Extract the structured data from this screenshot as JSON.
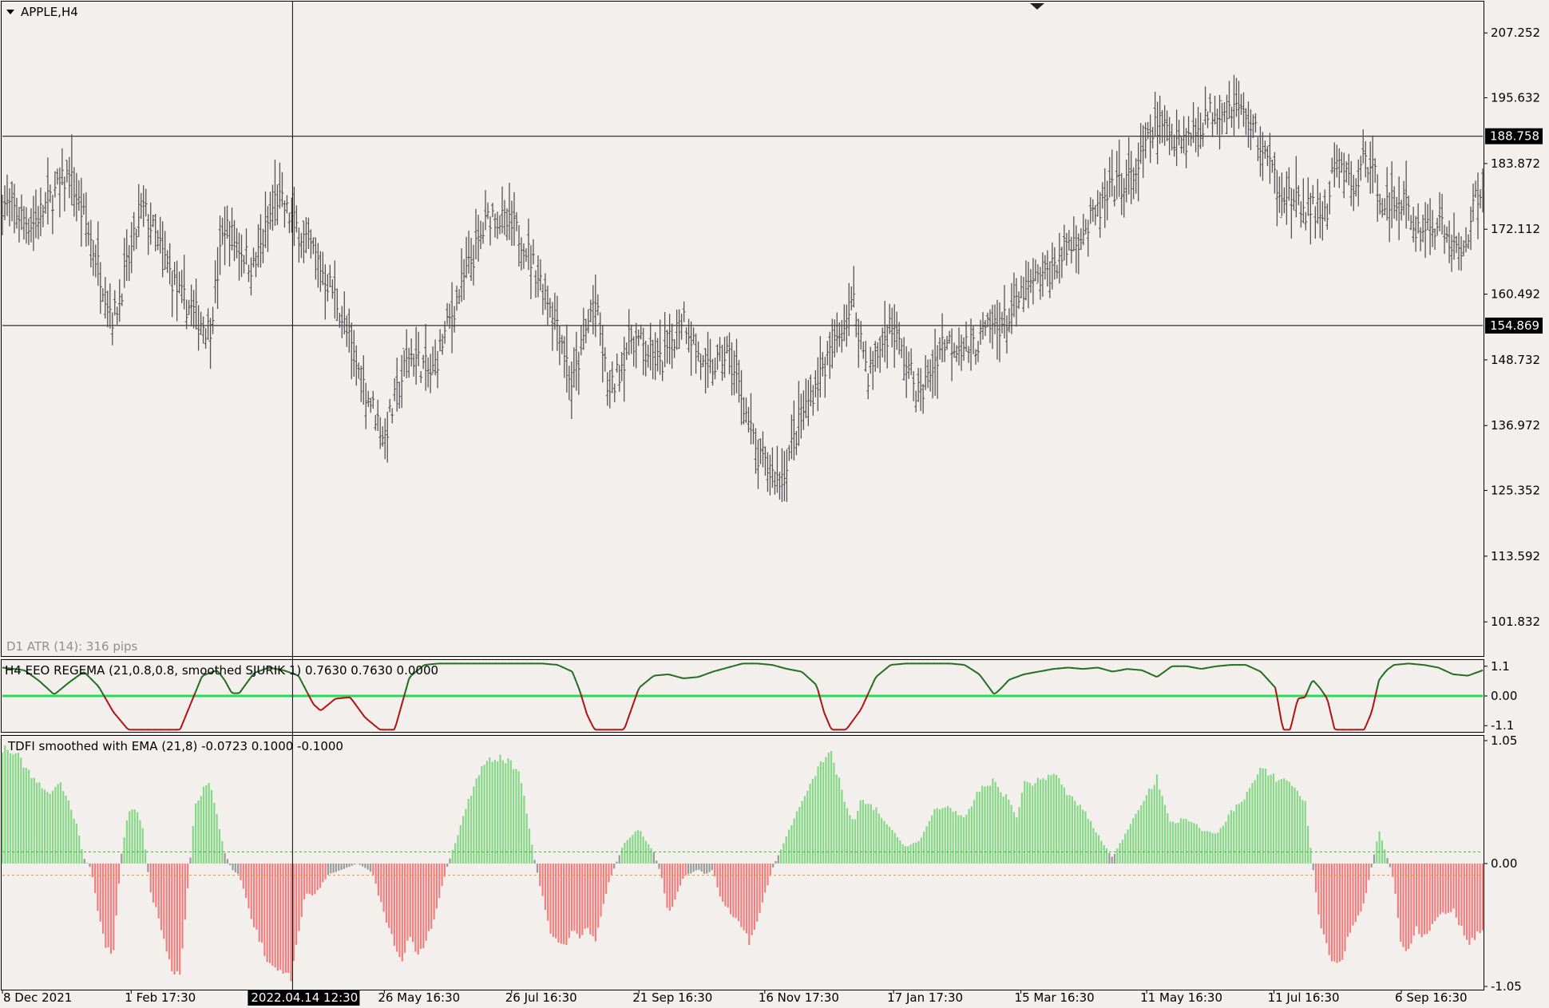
{
  "window": {
    "symbol_title": "APPLE,H4",
    "atr_label": "D1 ATR (14): 316 pips",
    "crosshair_time": "2022.04.14 12:30"
  },
  "colors": {
    "background": "#f2efed",
    "price_bars": "#555555",
    "green_line": "#22dd55",
    "eeo_up": "#1e6b1e",
    "eeo_down": "#b01010",
    "histo_pos": "#86d886",
    "histo_neg": "#f08080",
    "histo_neutral": "#9a9a9a",
    "level_pos": "#33bb33",
    "level_neg": "#ee9933"
  },
  "chart_data": [
    {
      "type": "line",
      "name": "APPLE,H4 price",
      "render": "ohlc-bars",
      "ylim": [
        96,
        212
      ],
      "y_ticks": [
        "207.252",
        "195.632",
        "183.872",
        "172.112",
        "160.492",
        "148.732",
        "136.972",
        "125.352",
        "113.592",
        "101.832"
      ],
      "price_labels": [
        "188.758",
        "154.869"
      ],
      "horizontal_lines": [
        188.758,
        154.869
      ],
      "x_ticks": [
        "8 Dec 2021",
        "1 Feb 17:30",
        "26 May 16:30",
        "26 Jul 16:30",
        "21 Sep 16:30",
        "16 Nov 17:30",
        "17 Jan 17:30",
        "15 Mar 16:30",
        "11 May 16:30",
        "11 Jul 16:30",
        "6 Sep 16:30"
      ],
      "x_tick_positions": [
        0,
        0.087,
        0.258,
        0.344,
        0.43,
        0.515,
        0.602,
        0.688,
        0.773,
        0.859,
        0.945
      ],
      "crosshair_x": 0.196,
      "series": [
        {
          "name": "close",
          "x": [
            0,
            0.02,
            0.045,
            0.06,
            0.075,
            0.095,
            0.12,
            0.14,
            0.15,
            0.17,
            0.185,
            0.21,
            0.225,
            0.24,
            0.258,
            0.275,
            0.29,
            0.31,
            0.33,
            0.35,
            0.375,
            0.385,
            0.4,
            0.41,
            0.425,
            0.445,
            0.46,
            0.475,
            0.49,
            0.5,
            0.51,
            0.525,
            0.545,
            0.56,
            0.575,
            0.585,
            0.6,
            0.62,
            0.635,
            0.655,
            0.67,
            0.68,
            0.69,
            0.705,
            0.72,
            0.735,
            0.75,
            0.765,
            0.78,
            0.8,
            0.82,
            0.835,
            0.845,
            0.86,
            0.875,
            0.895,
            0.9,
            0.915,
            0.92,
            0.935,
            0.945,
            0.955,
            0.97,
            0.985,
            0.998
          ],
          "y": [
            177,
            173,
            182,
            170,
            156,
            176,
            160,
            154,
            173,
            165,
            178,
            168,
            160,
            147,
            135,
            150,
            146,
            162,
            175,
            171,
            156,
            144,
            160,
            142,
            153,
            148,
            157,
            146,
            150,
            142,
            131,
            127,
            142,
            150,
            159,
            146,
            155,
            142,
            152,
            151,
            155,
            156,
            161,
            164,
            169,
            173,
            179,
            182,
            191,
            188,
            194,
            194,
            190,
            181,
            176,
            175,
            184,
            179,
            186,
            176,
            178,
            172,
            173,
            167,
            180
          ]
        }
      ]
    },
    {
      "type": "line",
      "name": "H4 EEO",
      "legend": "H4 EEO  REGEMA (21,0.8,0.8, smoothed  SJURIK 1) 0.7630 0.7630 0.0000",
      "ylim": [
        -1.3,
        1.3
      ],
      "y_ticks": [
        "1.1",
        "0.00",
        "-1.1"
      ],
      "zero_line": 0,
      "series": [
        {
          "name": "EEO",
          "x": [
            0,
            0.015,
            0.025,
            0.035,
            0.045,
            0.055,
            0.065,
            0.075,
            0.085,
            0.095,
            0.11,
            0.12,
            0.135,
            0.145,
            0.15,
            0.155,
            0.16,
            0.17,
            0.18,
            0.185,
            0.19,
            0.2,
            0.21,
            0.215,
            0.225,
            0.235,
            0.245,
            0.255,
            0.265,
            0.275,
            0.285,
            0.295,
            0.305,
            0.315,
            0.325,
            0.335,
            0.345,
            0.355,
            0.365,
            0.375,
            0.385,
            0.39,
            0.395,
            0.4,
            0.41,
            0.42,
            0.43,
            0.44,
            0.45,
            0.46,
            0.47,
            0.48,
            0.49,
            0.5,
            0.51,
            0.52,
            0.53,
            0.54,
            0.55,
            0.555,
            0.56,
            0.57,
            0.58,
            0.59,
            0.6,
            0.61,
            0.62,
            0.63,
            0.64,
            0.65,
            0.66,
            0.67,
            0.675,
            0.68,
            0.69,
            0.7,
            0.71,
            0.72,
            0.73,
            0.74,
            0.75,
            0.76,
            0.77,
            0.78,
            0.79,
            0.8,
            0.81,
            0.82,
            0.83,
            0.84,
            0.85,
            0.86,
            0.865,
            0.87,
            0.875,
            0.88,
            0.885,
            0.89,
            0.895,
            0.9,
            0.91,
            0.92,
            0.925,
            0.93,
            0.935,
            0.94,
            0.95,
            0.96,
            0.97,
            0.98,
            0.99,
            1.0
          ],
          "y": [
            1.05,
            0.95,
            0.55,
            0.05,
            0.5,
            0.9,
            0.35,
            -0.6,
            -1.25,
            -1.25,
            -1.25,
            -1.25,
            0.75,
            0.95,
            0.6,
            0.1,
            0.1,
            0.85,
            1.05,
            1.0,
            0.95,
            0.75,
            -0.3,
            -0.55,
            -0.1,
            -0.05,
            -0.8,
            -1.25,
            -1.25,
            0.7,
            1.15,
            1.2,
            1.2,
            1.2,
            1.2,
            1.2,
            1.2,
            1.2,
            1.2,
            1.15,
            0.9,
            0.2,
            -0.7,
            -1.25,
            -1.25,
            -1.25,
            0.3,
            0.75,
            0.8,
            0.65,
            0.7,
            0.9,
            1.05,
            1.2,
            1.2,
            1.15,
            1.0,
            0.9,
            0.4,
            -0.6,
            -1.25,
            -1.25,
            -0.5,
            0.7,
            1.15,
            1.2,
            1.2,
            1.2,
            1.2,
            1.15,
            0.8,
            0.05,
            0.3,
            0.6,
            0.8,
            0.9,
            1.0,
            1.05,
            1.0,
            1.05,
            0.9,
            1.0,
            0.95,
            0.7,
            1.1,
            1.1,
            1.0,
            1.1,
            1.15,
            1.15,
            0.9,
            0.3,
            -1.25,
            -1.25,
            -0.1,
            -0.05,
            0.6,
            0.3,
            -0.1,
            -1.25,
            -1.25,
            -1.25,
            -0.6,
            0.6,
            0.95,
            1.15,
            1.2,
            1.15,
            1.05,
            0.8,
            0.75,
            0.95
          ]
        }
      ]
    },
    {
      "type": "bar",
      "name": "TDFI",
      "legend": "TDFI smoothed with EMA (21,8) -0.0723 0.1000 -0.1000",
      "ylim": [
        -1.05,
        1.05
      ],
      "y_ticks": [
        "1.05",
        "0.00",
        "-1.05"
      ],
      "levels": [
        0.1,
        -0.1
      ],
      "series": [
        {
          "name": "TDFI",
          "x": [
            0,
            0.01,
            0.02,
            0.03,
            0.04,
            0.05,
            0.055,
            0.06,
            0.065,
            0.07,
            0.075,
            0.08,
            0.085,
            0.09,
            0.095,
            0.1,
            0.105,
            0.11,
            0.115,
            0.12,
            0.13,
            0.14,
            0.15,
            0.155,
            0.16,
            0.17,
            0.175,
            0.18,
            0.19,
            0.195,
            0.2,
            0.205,
            0.21,
            0.22,
            0.23,
            0.24,
            0.25,
            0.26,
            0.27,
            0.275,
            0.28,
            0.29,
            0.3,
            0.31,
            0.32,
            0.325,
            0.33,
            0.34,
            0.345,
            0.35,
            0.36,
            0.37,
            0.38,
            0.385,
            0.39,
            0.395,
            0.4,
            0.41,
            0.42,
            0.43,
            0.44,
            0.445,
            0.45,
            0.46,
            0.47,
            0.475,
            0.48,
            0.485,
            0.49,
            0.5,
            0.505,
            0.51,
            0.52,
            0.53,
            0.54,
            0.545,
            0.55,
            0.555,
            0.56,
            0.565,
            0.57,
            0.575,
            0.58,
            0.59,
            0.6,
            0.61,
            0.62,
            0.63,
            0.64,
            0.65,
            0.66,
            0.67,
            0.68,
            0.685,
            0.69,
            0.7,
            0.71,
            0.72,
            0.73,
            0.74,
            0.75,
            0.76,
            0.77,
            0.78,
            0.785,
            0.79,
            0.8,
            0.81,
            0.82,
            0.83,
            0.84,
            0.85,
            0.86,
            0.87,
            0.875,
            0.88,
            0.89,
            0.9,
            0.905,
            0.91,
            0.92,
            0.93,
            0.94,
            0.945,
            0.95,
            0.955,
            0.96,
            0.97,
            0.98,
            0.99,
            0.998
          ],
          "y": [
            1.0,
            0.95,
            0.75,
            0.62,
            0.7,
            0.35,
            0.05,
            -0.05,
            -0.45,
            -0.75,
            -0.8,
            0.05,
            0.45,
            0.5,
            0.3,
            -0.25,
            -0.45,
            -0.7,
            -0.95,
            -1.0,
            0.5,
            0.75,
            0.1,
            -0.05,
            -0.1,
            -0.55,
            -0.7,
            -0.9,
            -0.95,
            -1.0,
            -0.6,
            -0.25,
            -0.3,
            -0.1,
            -0.05,
            0.0,
            -0.08,
            -0.55,
            -0.85,
            -0.6,
            -0.85,
            -0.55,
            -0.05,
            0.35,
            0.75,
            0.85,
            0.9,
            0.92,
            0.85,
            0.75,
            0.0,
            -0.6,
            -0.75,
            -0.6,
            -0.65,
            -0.55,
            -0.7,
            -0.15,
            0.18,
            0.3,
            0.1,
            -0.1,
            -0.45,
            -0.12,
            -0.05,
            -0.1,
            -0.05,
            -0.3,
            -0.4,
            -0.55,
            -0.7,
            -0.5,
            -0.05,
            0.25,
            0.55,
            0.7,
            0.8,
            0.9,
            0.95,
            0.75,
            0.5,
            0.35,
            0.55,
            0.48,
            0.3,
            0.15,
            0.2,
            0.48,
            0.5,
            0.38,
            0.65,
            0.72,
            0.55,
            0.4,
            0.7,
            0.72,
            0.8,
            0.6,
            0.48,
            0.25,
            0.05,
            0.3,
            0.55,
            0.75,
            0.5,
            0.35,
            0.4,
            0.3,
            0.25,
            0.45,
            0.6,
            0.82,
            0.75,
            0.72,
            0.62,
            0.55,
            -0.55,
            -0.9,
            -0.85,
            -0.6,
            -0.35,
            0.3,
            -0.15,
            -0.75,
            -0.75,
            -0.55,
            -0.65,
            -0.45,
            -0.4,
            -0.7,
            -0.6
          ]
        }
      ]
    }
  ]
}
